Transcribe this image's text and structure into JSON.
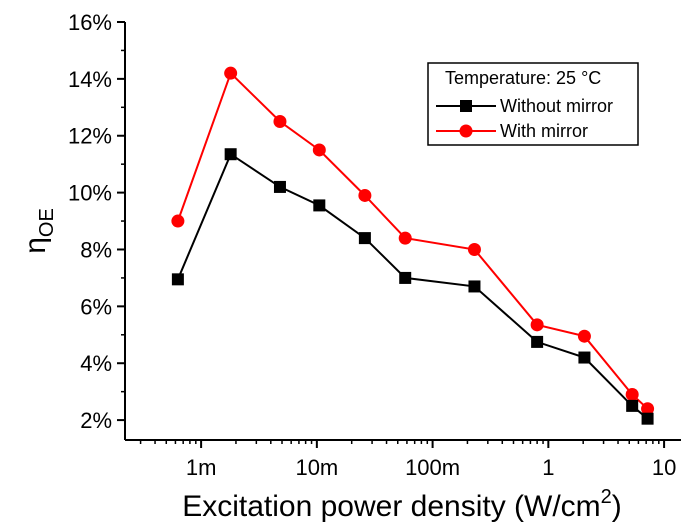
{
  "chart_data": {
    "type": "line",
    "title": "",
    "xlabel": "Excitation power density (W/cm",
    "xlabel_sup": "2",
    "xlabel_close": ")",
    "ylabel": "η",
    "ylabel_sub": "OE",
    "x_scale": "log",
    "xlim": [
      0.00022,
      14
    ],
    "ylim": [
      1.3,
      16
    ],
    "x_ticks": [
      {
        "value": 0.001,
        "label": "1m"
      },
      {
        "value": 0.01,
        "label": "10m"
      },
      {
        "value": 0.1,
        "label": "100m"
      },
      {
        "value": 1,
        "label": "1"
      },
      {
        "value": 10,
        "label": "10"
      }
    ],
    "y_ticks": [
      {
        "value": 2,
        "label": "2%"
      },
      {
        "value": 4,
        "label": "4%"
      },
      {
        "value": 6,
        "label": "6%"
      },
      {
        "value": 8,
        "label": "8%"
      },
      {
        "value": 10,
        "label": "10%"
      },
      {
        "value": 12,
        "label": "12%"
      },
      {
        "value": 14,
        "label": "14%"
      },
      {
        "value": 16,
        "label": "16%"
      }
    ],
    "legend": {
      "title": "Temperature: 25 °C",
      "position": "top-right"
    },
    "series": [
      {
        "name": "Without mirror",
        "color": "#000000",
        "marker": "square",
        "x": [
          0.00063,
          0.0018,
          0.0048,
          0.0105,
          0.026,
          0.058,
          0.23,
          0.8,
          2.05,
          5.3,
          7.2
        ],
        "y": [
          6.95,
          11.35,
          10.2,
          9.55,
          8.4,
          7.0,
          6.7,
          4.75,
          4.2,
          2.5,
          2.05
        ]
      },
      {
        "name": "With mirror",
        "color": "#ff0000",
        "marker": "circle",
        "x": [
          0.00063,
          0.0018,
          0.0048,
          0.0105,
          0.026,
          0.058,
          0.23,
          0.8,
          2.05,
          5.3,
          7.2
        ],
        "y": [
          9.0,
          14.2,
          12.5,
          11.5,
          9.9,
          8.4,
          8.0,
          5.35,
          4.95,
          2.9,
          2.4
        ]
      }
    ]
  }
}
